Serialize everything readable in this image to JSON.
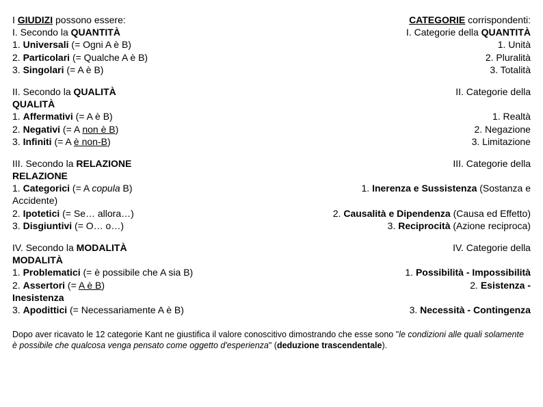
{
  "s1": {
    "l1a": "I ",
    "l1b": "GIUDIZI",
    "l1c": " possono essere:",
    "l2a": "I. Secondo la ",
    "l2b": "QUANTITÀ",
    "l3a": "1. ",
    "l3b": "Universali",
    "l3c": " (= Ogni A è B)",
    "l4a": "2. ",
    "l4b": "Particolari",
    "l4c": " (= Qualche A è B)",
    "l5a": "3. ",
    "l5b": "Singolari",
    "l5c": " (= A è B)",
    "r1a": "CATEGORIE",
    "r1b": " corrispondenti:",
    "r2a": "I. Categorie della ",
    "r2b": "QUANTITÀ",
    "r3": "1. Unità",
    "r4": "2. Pluralità",
    "r5": "3. Totalità"
  },
  "s2": {
    "l1a": "II. Secondo la ",
    "l1b": "QUALITÀ",
    "l2": "QUALITÀ",
    "l3a": "1. ",
    "l3b": "Affermativi",
    "l3c": " (= A è B)",
    "l4a": "2. ",
    "l4b": "Negativi",
    "l4c": " (= A ",
    "l4d": "non è B",
    "l4e": ")",
    "l5a": "3. ",
    "l5b": "Infiniti",
    "l5c": " (= A ",
    "l5d": "è non-B",
    "l5e": ")",
    "r1": "II. Categorie della",
    "r2": "1. Realtà",
    "r3": "2. Negazione",
    "r4": "3. Limitazione"
  },
  "s3": {
    "l1a": "III. Secondo la ",
    "l1b": "RELAZIONE",
    "l2": "RELAZIONE",
    "l3a": "1. ",
    "l3b": "Categorici",
    "l3c": " (= A ",
    "l3d": "copula",
    "l3e": " B)",
    "l4": "Accidente)",
    "l5a": "2. ",
    "l5b": "Ipotetici",
    "l5c": " (= Se… allora…)",
    "l6a": "3. ",
    "l6b": "Disgiuntivi",
    "l6c": " (= O… o…)",
    "r1": "III. Categorie della",
    "r2a": "1. ",
    "r2b": "Inerenza e Sussistenza",
    "r2c": " (Sostanza e",
    "r3a": "2. ",
    "r3b": "Causalità e Dipendenza",
    "r3c": " (Causa ed Effetto)",
    "r4a": "3. ",
    "r4b": "Reciprocità",
    "r4c": " (Azione reciproca)"
  },
  "s4": {
    "l1a": "IV. Secondo la ",
    "l1b": "MODALITÀ",
    "l2": "MODALITÀ",
    "l3a": "1. ",
    "l3b": "Problematici",
    "l3c": " (= è possibile che A sia B)",
    "l4a": "2. ",
    "l4b": "Assertori",
    "l4c": " (= ",
    "l4d": "A è B",
    "l4e": ")",
    "l5": "Inesistenza",
    "l6a": "3. ",
    "l6b": "Apodittici",
    "l6c": " (= Necessariamente A è B)",
    "r1": "IV. Categorie della",
    "r2a": "1. ",
    "r2b": "Possibilità - Impossibilità",
    "r3a": "2. ",
    "r3b": "Esistenza -",
    "r4a": "3. ",
    "r4b": "Necessità - Contingenza"
  },
  "footer": {
    "f1": "Dopo aver ricavato le 12 categorie Kant ne giustifica il valore conoscitivo dimostrando che esse sono \"",
    "f2": "le condizioni alle quali solamente è possibile che qualcosa venga pensato come oggetto d'esperienza",
    "f3": "\" (",
    "f4": "deduzione trascendentale",
    "f5": ")."
  }
}
